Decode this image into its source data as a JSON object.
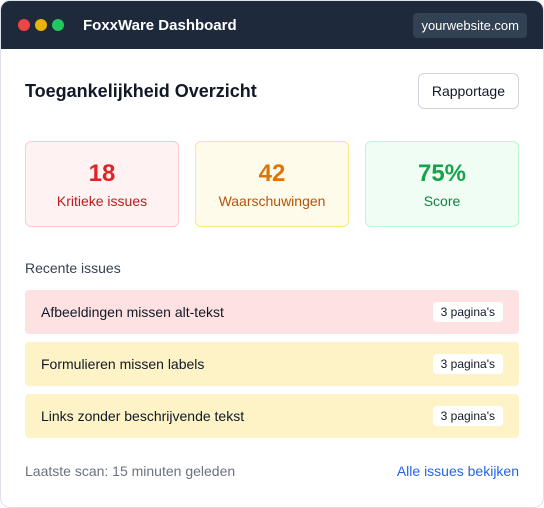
{
  "window": {
    "title": "FoxxWare Dashboard",
    "url": "yourwebsite.com",
    "controls": [
      "close-dot",
      "minimize-dot",
      "maximize-dot"
    ]
  },
  "header": {
    "title": "Toegankelijkheid Overzicht",
    "report_button": "Rapportage"
  },
  "stats": [
    {
      "value": "18",
      "label": "Kritieke issues",
      "color": "#dc2626"
    },
    {
      "value": "42",
      "label": "Waarschuwingen",
      "color": "#d97706"
    },
    {
      "value": "75%",
      "label": "Score",
      "color": "#16a34a"
    }
  ],
  "recent": {
    "title": "Recente issues",
    "items": [
      {
        "text": "Afbeeldingen missen alt-tekst",
        "badge": "3 pagina's",
        "severity": "critical"
      },
      {
        "text": "Formulieren missen labels",
        "badge": "3 pagina's",
        "severity": "warning"
      },
      {
        "text": "Links zonder beschrijvende tekst",
        "badge": "3 pagina's",
        "severity": "warning"
      }
    ]
  },
  "footer": {
    "last_scan": "Laatste scan: 15 minuten geleden",
    "all_issues_link": "Alle issues bekijken"
  },
  "colors": {
    "titlebar": "#1e293b",
    "accent_link": "#2563eb",
    "critical_bg": "#fee2e2",
    "warning_bg": "#fef3c7"
  }
}
